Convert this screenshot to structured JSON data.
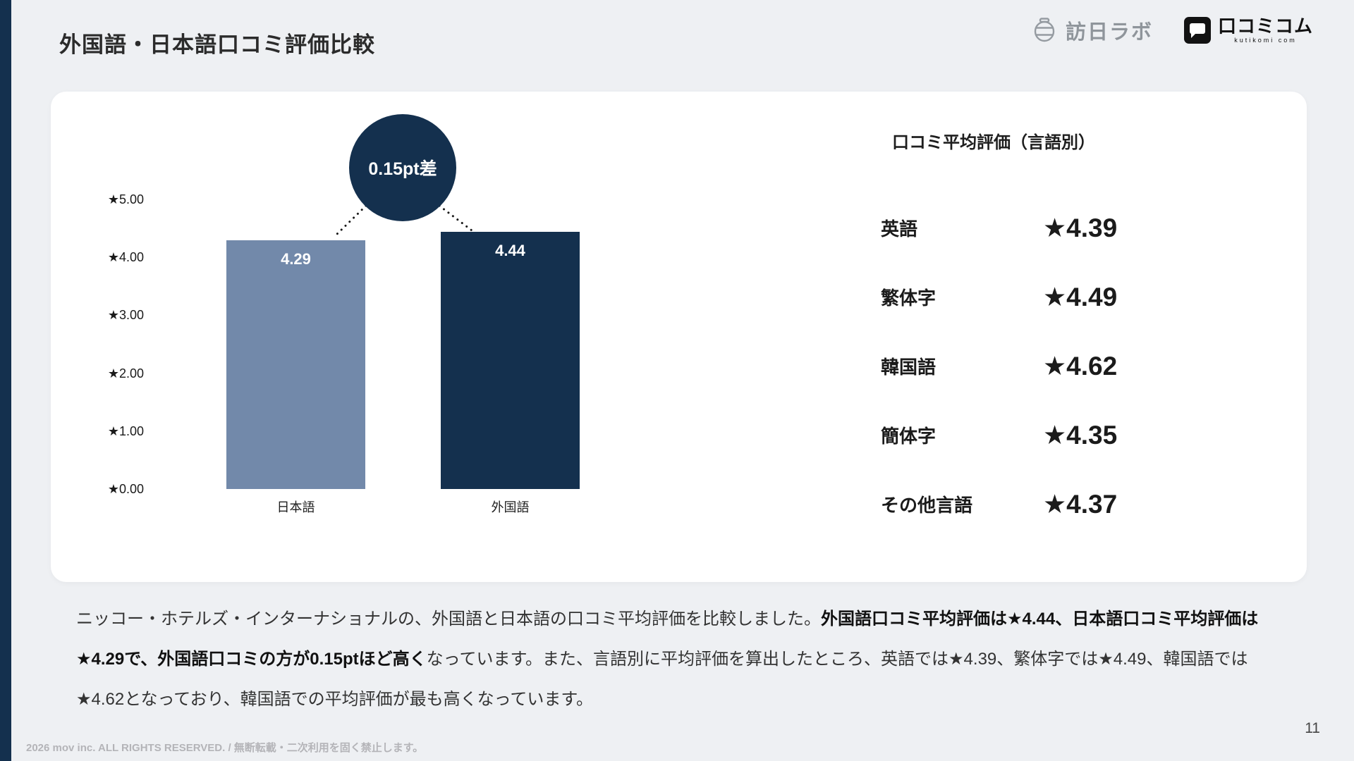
{
  "page": {
    "title": "外国語・日本語口コミ評価比較",
    "page_number": "11",
    "footer": "2026 mov inc. ALL RIGHTS RESERVED. / 無断転載・二次利用を固く禁止します。"
  },
  "logos": {
    "honichi_text": "訪日ラボ",
    "kutikomi_text": "口コミコム",
    "kutikomi_sub": "kutikomi com"
  },
  "chart_data": {
    "type": "bar",
    "title": "",
    "categories": [
      "日本語",
      "外国語"
    ],
    "values": [
      4.29,
      4.44
    ],
    "value_labels": [
      "4.29",
      "4.44"
    ],
    "bar_colors": [
      "#7289aa",
      "#14304e"
    ],
    "ylim": [
      0,
      5
    ],
    "yticks": [
      "★5.00",
      "★4.00",
      "★3.00",
      "★2.00",
      "★1.00",
      "★0.00"
    ],
    "ytick_values": [
      5,
      4,
      3,
      2,
      1,
      0
    ],
    "annotation": "0.15pt差",
    "grid": false,
    "legend": "none"
  },
  "language_ratings": {
    "title": "口コミ平均評価（言語別）",
    "rows": [
      {
        "label": "英語",
        "value": "★4.39"
      },
      {
        "label": "繁体字",
        "value": "★4.49"
      },
      {
        "label": "韓国語",
        "value": "★4.62"
      },
      {
        "label": "簡体字",
        "value": "★4.35"
      },
      {
        "label": "その他言語",
        "value": "★4.37"
      }
    ]
  },
  "body_text": {
    "part1": "ニッコー・ホテルズ・インターナショナルの、外国語と日本語の口コミ平均評価を比較しました。",
    "part2_bold": "外国語口コミ平均評価は★4.44、日本語口コミ平均評価は★4.29で、外国語口コミの方が0.15ptほど高く",
    "part3": "なっています。また、言語別に平均評価を算出したところ、英語では★4.39、繁体字では★4.49、韓国語では★4.62となっており、韓国語での平均評価が最も高くなっています。"
  },
  "colors": {
    "accent_navy": "#14304e",
    "bar_slate": "#7289aa",
    "background": "#eef0f3"
  }
}
